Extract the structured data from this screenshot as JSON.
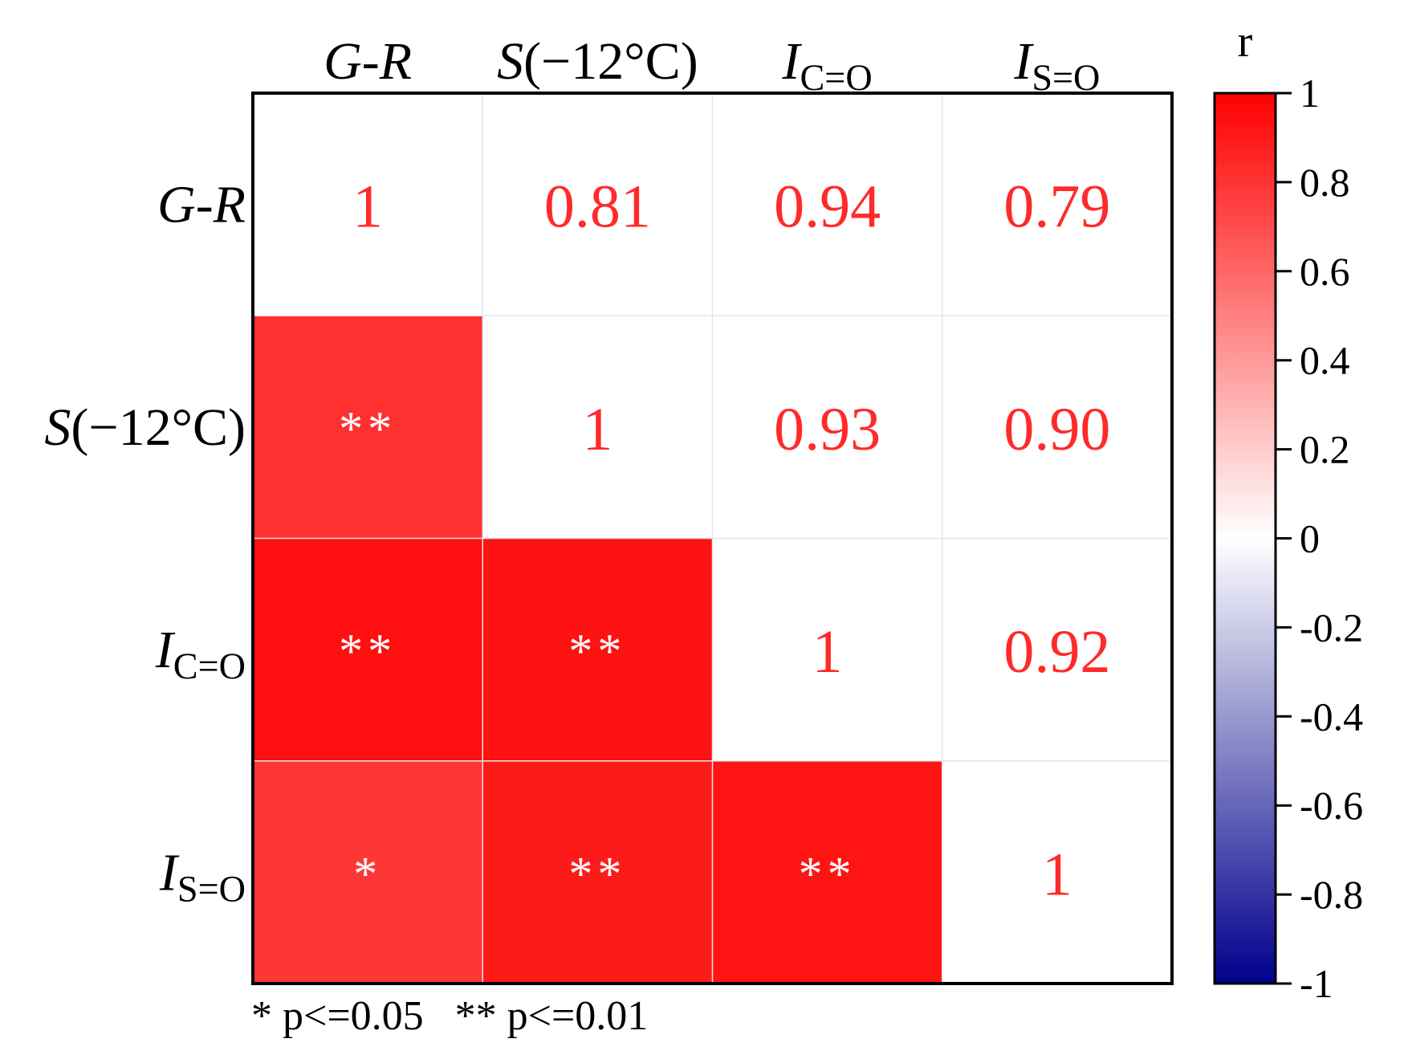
{
  "chart_data": {
    "type": "heatmap",
    "title": "",
    "variables": [
      {
        "base": "G-R",
        "sub": "",
        "italic": true
      },
      {
        "base": "S",
        "rest": "(−12°C)",
        "sub": "",
        "italic": true
      },
      {
        "base": "I",
        "sub": "C=O",
        "italic": true
      },
      {
        "base": "I",
        "sub": "S=O",
        "italic": true
      }
    ],
    "matrix": [
      [
        1.0,
        0.81,
        0.94,
        0.79
      ],
      [
        0.81,
        1.0,
        0.93,
        0.9
      ],
      [
        0.94,
        0.93,
        1.0,
        0.92
      ],
      [
        0.79,
        0.9,
        0.92,
        1.0
      ]
    ],
    "upper_labels": [
      [
        "1",
        "0.81",
        "0.94",
        "0.79"
      ],
      [
        "",
        "1",
        "0.93",
        "0.90"
      ],
      [
        "",
        "",
        "1",
        "0.92"
      ],
      [
        "",
        "",
        "",
        "1"
      ]
    ],
    "significance": [
      [
        "",
        "",
        "",
        ""
      ],
      [
        "**",
        "",
        "",
        ""
      ],
      [
        "**",
        "**",
        "",
        ""
      ],
      [
        "*",
        "**",
        "**",
        ""
      ]
    ],
    "colorbar": {
      "title": "r",
      "range": [
        -1,
        1
      ],
      "ticks": [
        "1",
        "0.8",
        "0.6",
        "0.4",
        "0.2",
        "0",
        "-0.2",
        "-0.4",
        "-0.6",
        "-0.8",
        "-1"
      ],
      "colors": {
        "high": "#ff0000",
        "mid": "#ffffff",
        "low": "#00008b"
      }
    },
    "footnote": "* p<=0.05   ** p<=0.01",
    "label_color": "#ff2a2a",
    "star_color": "#ffffff"
  }
}
